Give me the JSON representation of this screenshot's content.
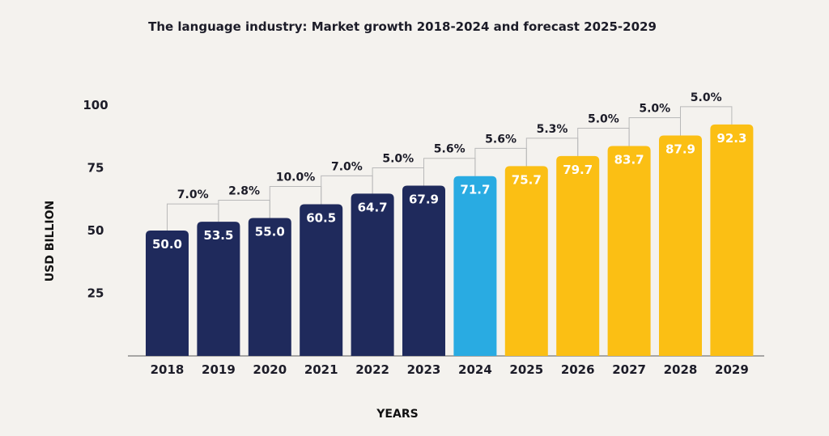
{
  "chart_data": {
    "type": "bar",
    "title": "The language industry: Market growth 2018-2024 and forecast 2025-2029",
    "xlabel": "YEARS",
    "ylabel": "USD BILLION",
    "ylim": [
      0,
      100
    ],
    "yticks": [
      25,
      50,
      75,
      100
    ],
    "grid": false,
    "legend": "none",
    "categories": [
      "2018",
      "2019",
      "2020",
      "2021",
      "2022",
      "2023",
      "2024",
      "2025",
      "2026",
      "2027",
      "2028",
      "2029"
    ],
    "values": [
      50.0,
      53.5,
      55.0,
      60.5,
      64.7,
      67.9,
      71.7,
      75.7,
      79.7,
      83.7,
      87.9,
      92.3
    ],
    "value_labels": [
      "50.0",
      "53.5",
      "55.0",
      "60.5",
      "64.7",
      "67.9",
      "71.7",
      "75.7",
      "79.7",
      "83.7",
      "87.9",
      "92.3"
    ],
    "growth_labels": [
      "7.0%",
      "2.8%",
      "10.0%",
      "7.0%",
      "5.0%",
      "5.6%",
      "5.6%",
      "5.3%",
      "5.0%",
      "5.0%",
      "5.0%"
    ],
    "bar_colors": [
      "#1f2a5c",
      "#1f2a5c",
      "#1f2a5c",
      "#1f2a5c",
      "#1f2a5c",
      "#1f2a5c",
      "#29abe2",
      "#fbbf14",
      "#fbbf14",
      "#fbbf14",
      "#fbbf14",
      "#fbbf14"
    ],
    "colors": {
      "historical": "#1f2a5c",
      "current": "#29abe2",
      "forecast": "#fbbf14"
    }
  }
}
